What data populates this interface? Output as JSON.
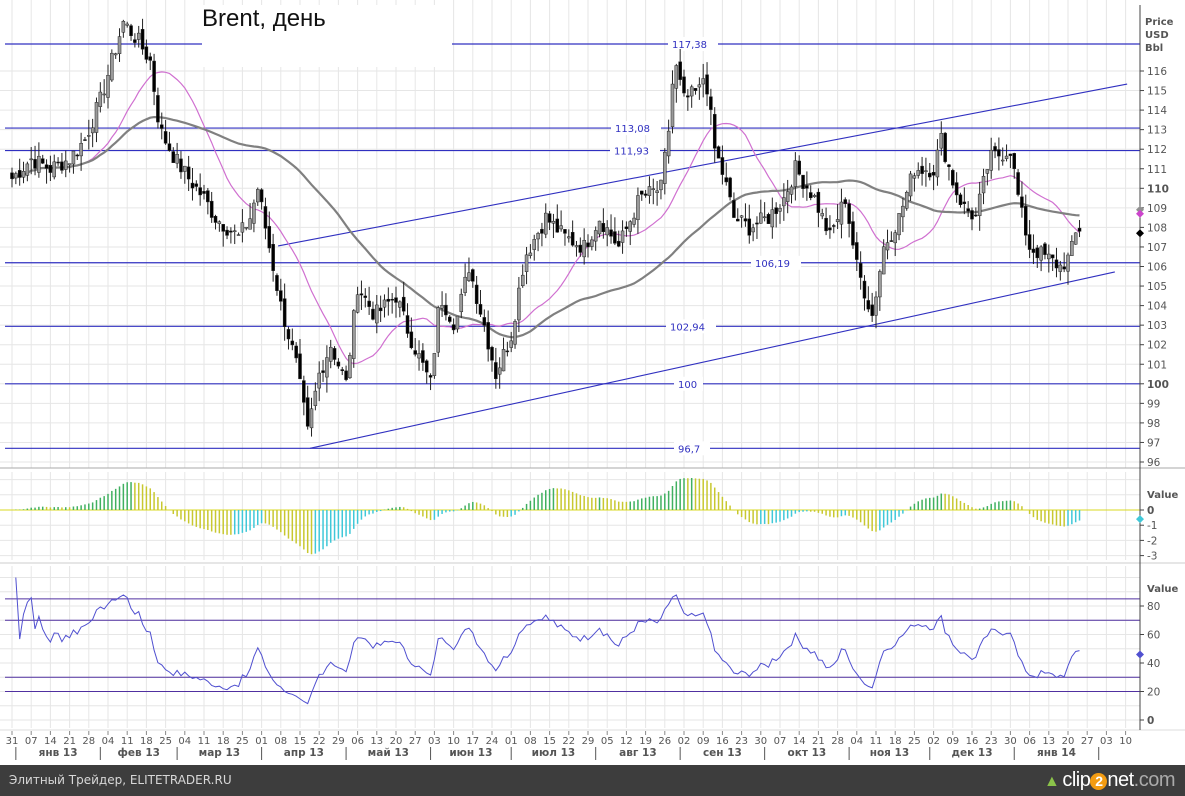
{
  "chart_data": {
    "type": "candlestick",
    "title": "Brent, день",
    "price_axis": {
      "label_lines": [
        "Price",
        "USD",
        "Bbl"
      ],
      "ylim": [
        95.5,
        118.8
      ],
      "ticks": [
        96,
        97,
        98,
        99,
        100,
        101,
        102,
        103,
        104,
        105,
        106,
        107,
        108,
        109,
        110,
        111,
        112,
        113,
        114,
        115,
        116
      ],
      "bold_ticks": [
        100,
        110
      ]
    },
    "price_keypoints_note": "trading-day index since 31.12.2012, approximate close",
    "price_keypoints": [
      [
        0,
        110.5
      ],
      [
        5,
        111.5
      ],
      [
        10,
        111
      ],
      [
        15,
        111.5
      ],
      [
        19,
        112.5
      ],
      [
        23,
        114.5
      ],
      [
        26,
        116.5
      ],
      [
        29,
        118.5
      ],
      [
        33,
        117.5
      ],
      [
        36,
        116.5
      ],
      [
        38.5,
        113
      ],
      [
        42.5,
        111.5
      ],
      [
        46,
        110.5
      ],
      [
        50,
        109.5
      ],
      [
        53,
        108.5
      ],
      [
        56,
        108
      ],
      [
        59,
        107.5
      ],
      [
        62,
        108.5
      ],
      [
        64,
        110
      ],
      [
        67,
        107
      ],
      [
        70,
        104
      ],
      [
        74,
        101
      ],
      [
        77,
        97.5
      ],
      [
        80,
        100.5
      ],
      [
        83,
        102
      ],
      [
        87,
        100
      ],
      [
        90,
        105
      ],
      [
        94.5,
        103.5
      ],
      [
        100,
        104.5
      ],
      [
        103.5,
        102.5
      ],
      [
        109,
        100
      ],
      [
        111.5,
        104.5
      ],
      [
        115.5,
        103
      ],
      [
        119,
        106
      ],
      [
        123,
        103
      ],
      [
        126,
        100.5
      ],
      [
        130,
        102.5
      ],
      [
        133.5,
        106.5
      ],
      [
        139,
        108.5
      ],
      [
        144,
        107.5
      ],
      [
        149,
        107
      ],
      [
        153,
        108.5
      ],
      [
        158,
        107
      ],
      [
        163.5,
        109.5
      ],
      [
        169,
        110
      ],
      [
        171,
        113
      ],
      [
        172.5,
        116.5
      ],
      [
        175,
        114.5
      ],
      [
        179,
        115
      ],
      [
        180.5,
        116
      ],
      [
        183,
        112
      ],
      [
        185.5,
        110.5
      ],
      [
        188,
        108.5
      ],
      [
        192,
        108
      ],
      [
        197,
        108.5
      ],
      [
        201,
        109.5
      ],
      [
        204,
        111
      ],
      [
        209,
        109.5
      ],
      [
        213,
        107.5
      ],
      [
        217,
        109.5
      ],
      [
        220,
        106
      ],
      [
        224,
        103.5
      ],
      [
        227,
        107
      ],
      [
        231,
        108.5
      ],
      [
        235,
        111
      ],
      [
        240,
        111
      ],
      [
        242,
        112.5
      ],
      [
        245.5,
        110
      ],
      [
        248,
        109
      ],
      [
        251,
        108.5
      ],
      [
        254.5,
        111.5
      ],
      [
        260,
        112
      ],
      [
        262.5,
        109
      ],
      [
        265,
        107
      ],
      [
        269,
        106.5
      ],
      [
        273,
        106
      ],
      [
        275.5,
        106.5
      ],
      [
        277.5,
        108
      ],
      [
        278.5,
        107.8
      ]
    ],
    "levels": [
      {
        "value": 117.38,
        "label": "117,38"
      },
      {
        "value": 113.08,
        "label": "113,08"
      },
      {
        "value": 111.93,
        "label": "111,93"
      },
      {
        "value": 106.19,
        "label": "106,19"
      },
      {
        "value": 102.94,
        "label": "102,94"
      },
      {
        "value": 100,
        "label": "100"
      },
      {
        "value": 96.7,
        "label": "96,7"
      }
    ],
    "trendlines": [
      {
        "name": "channel-upper",
        "from": [
          69.3,
          107.05
        ],
        "to": [
          290.4,
          115.33
        ]
      },
      {
        "name": "channel-lower",
        "from": [
          77.6,
          96.7
        ],
        "to": [
          287.2,
          105.72
        ]
      }
    ],
    "moving_averages": [
      {
        "name": "MA fast",
        "period": 20,
        "color": "#d070d0"
      },
      {
        "name": "MA slow",
        "period": 60,
        "color": "#808080"
      }
    ],
    "last_markers": [
      {
        "value": 108.9,
        "color": "#909090"
      },
      {
        "value": 108.7,
        "color": "#cc44cc"
      },
      {
        "value": 107.7,
        "color": "#000000"
      }
    ],
    "macd_panel": {
      "axis_label": "Value",
      "ticks": [
        "0",
        "-1",
        "-2",
        "-3"
      ],
      "tick_values": [
        0,
        -1,
        -2,
        -3
      ],
      "ylim": [
        -3.2,
        2.2
      ]
    },
    "rsi_panel": {
      "axis_label": "Value",
      "ticks": [
        "80",
        "60",
        "40",
        "20",
        "0"
      ],
      "tick_values": [
        80,
        60,
        40,
        20,
        0
      ],
      "levels": [
        85,
        70,
        30,
        20
      ],
      "ylim": [
        0,
        100
      ],
      "color": "#5050d0",
      "last_value": 46
    },
    "x_axis": {
      "week_labels": [
        "31",
        "07",
        "14",
        "21",
        "28",
        "04",
        "11",
        "18",
        "25",
        "04",
        "11",
        "18",
        "25",
        "01",
        "08",
        "15",
        "22",
        "29",
        "06",
        "13",
        "20",
        "27",
        "03",
        "10",
        "17",
        "24",
        "01",
        "08",
        "15",
        "22",
        "29",
        "05",
        "12",
        "19",
        "26",
        "02",
        "09",
        "16",
        "23",
        "30",
        "07",
        "14",
        "21",
        "28",
        "04",
        "11",
        "18",
        "25",
        "02",
        "09",
        "16",
        "23",
        "30",
        "06",
        "13",
        "20",
        "27",
        "03",
        "10"
      ],
      "months": [
        {
          "label": "янв 13",
          "start_week": 0.2,
          "end_week": 4.6
        },
        {
          "label": "фев 13",
          "start_week": 4.6,
          "end_week": 8.6
        },
        {
          "label": "мар 13",
          "start_week": 8.6,
          "end_week": 13
        },
        {
          "label": "апр 13",
          "start_week": 13,
          "end_week": 17.4
        },
        {
          "label": "май 13",
          "start_week": 17.4,
          "end_week": 21.8
        },
        {
          "label": "июн 13",
          "start_week": 21.8,
          "end_week": 26
        },
        {
          "label": "июл 13",
          "start_week": 26,
          "end_week": 30.4
        },
        {
          "label": "авг 13",
          "start_week": 30.4,
          "end_week": 34.8
        },
        {
          "label": "сен 13",
          "start_week": 34.8,
          "end_week": 39.2
        },
        {
          "label": "окт 13",
          "start_week": 39.2,
          "end_week": 43.6
        },
        {
          "label": "ноя 13",
          "start_week": 43.6,
          "end_week": 47.8
        },
        {
          "label": "дек 13",
          "start_week": 47.8,
          "end_week": 52.2
        },
        {
          "label": "янв 14",
          "start_week": 52.2,
          "end_week": 56.6
        }
      ]
    }
  },
  "footer": {
    "text": "Элитный Трейдер, ELITETRADER.RU",
    "logo": {
      "a": "clip",
      "b": "2",
      "c": "net",
      "d": ".com"
    }
  },
  "colors": {
    "level": "#3030c0",
    "grid": "#e6e6e6",
    "footer_bg": "#3d3d3d"
  }
}
